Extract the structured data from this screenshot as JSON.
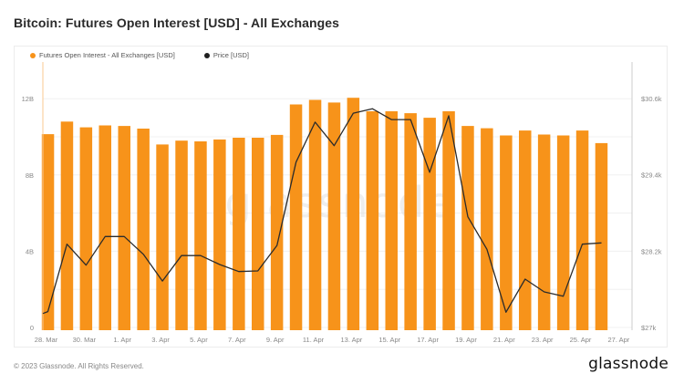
{
  "header": {
    "title": "Bitcoin: Futures Open Interest [USD] - All Exchanges"
  },
  "legend": [
    {
      "label": "Futures Open Interest - All Exchanges [USD]",
      "color": "#f7931a"
    },
    {
      "label": "Price [USD]",
      "color": "#1f1f1f"
    }
  ],
  "watermark": "glassnode",
  "footer": {
    "copyright": "© 2023 Glassnode. All Rights Reserved.",
    "logo": "glassnode"
  },
  "colors": {
    "bar": "#f7931a",
    "line": "#2b2b2b",
    "grid": "#f0f0f0",
    "left_axis": "#f9c891",
    "right_axis": "#cccccc"
  },
  "chart_data": {
    "type": "bar",
    "title": "Bitcoin: Futures Open Interest [USD] - All Exchanges",
    "xlabel": "",
    "ylabel": "Futures Open Interest [USD]",
    "y2label": "Price [USD]",
    "ylim": [
      0,
      12.5
    ],
    "y2lim": [
      27000,
      30800
    ],
    "yticks": [
      "0",
      "4B",
      "8B",
      "12B"
    ],
    "y2ticks": [
      "$27k",
      "$28.2k",
      "$29.4k",
      "$30.6k"
    ],
    "xticks": [
      "28. Mar",
      "30. Mar",
      "1. Apr",
      "3. Apr",
      "5. Apr",
      "7. Apr",
      "9. Apr",
      "11. Apr",
      "13. Apr",
      "15. Apr",
      "17. Apr",
      "19. Apr",
      "21. Apr",
      "23. Apr",
      "25. Apr",
      "27. Apr"
    ],
    "grid": true,
    "legend_position": "top-left",
    "categories": [
      "28 Mar",
      "29 Mar",
      "30 Mar",
      "31 Mar",
      "1 Apr",
      "2 Apr",
      "3 Apr",
      "4 Apr",
      "5 Apr",
      "6 Apr",
      "7 Apr",
      "8 Apr",
      "9 Apr",
      "10 Apr",
      "11 Apr",
      "12 Apr",
      "13 Apr",
      "14 Apr",
      "15 Apr",
      "16 Apr",
      "17 Apr",
      "18 Apr",
      "19 Apr",
      "20 Apr",
      "21 Apr",
      "22 Apr",
      "23 Apr",
      "24 Apr",
      "25 Apr",
      "26 Apr"
    ],
    "series": [
      {
        "name": "Futures Open Interest - All Exchanges [USD]",
        "type": "bar",
        "axis": "left",
        "unit": "B USD",
        "values": [
          10.14,
          10.8,
          10.5,
          10.6,
          10.57,
          10.43,
          9.6,
          9.8,
          9.76,
          9.86,
          9.95,
          9.95,
          10.1,
          11.7,
          11.94,
          11.8,
          12.05,
          11.34,
          11.34,
          11.24,
          11.0,
          11.34,
          10.57,
          10.45,
          10.07,
          10.33,
          10.12,
          10.07,
          10.33,
          9.67
        ]
      },
      {
        "name": "Price [USD]",
        "type": "line",
        "axis": "right",
        "unit": "USD",
        "values": [
          27220,
          28310,
          27980,
          28430,
          28430,
          28150,
          27730,
          28130,
          28130,
          27990,
          27880,
          27890,
          28290,
          29600,
          30230,
          29860,
          30370,
          30440,
          30270,
          30270,
          29440,
          30330,
          28740,
          28230,
          27240,
          27760,
          27560,
          27490,
          28310,
          28330
        ]
      }
    ]
  }
}
